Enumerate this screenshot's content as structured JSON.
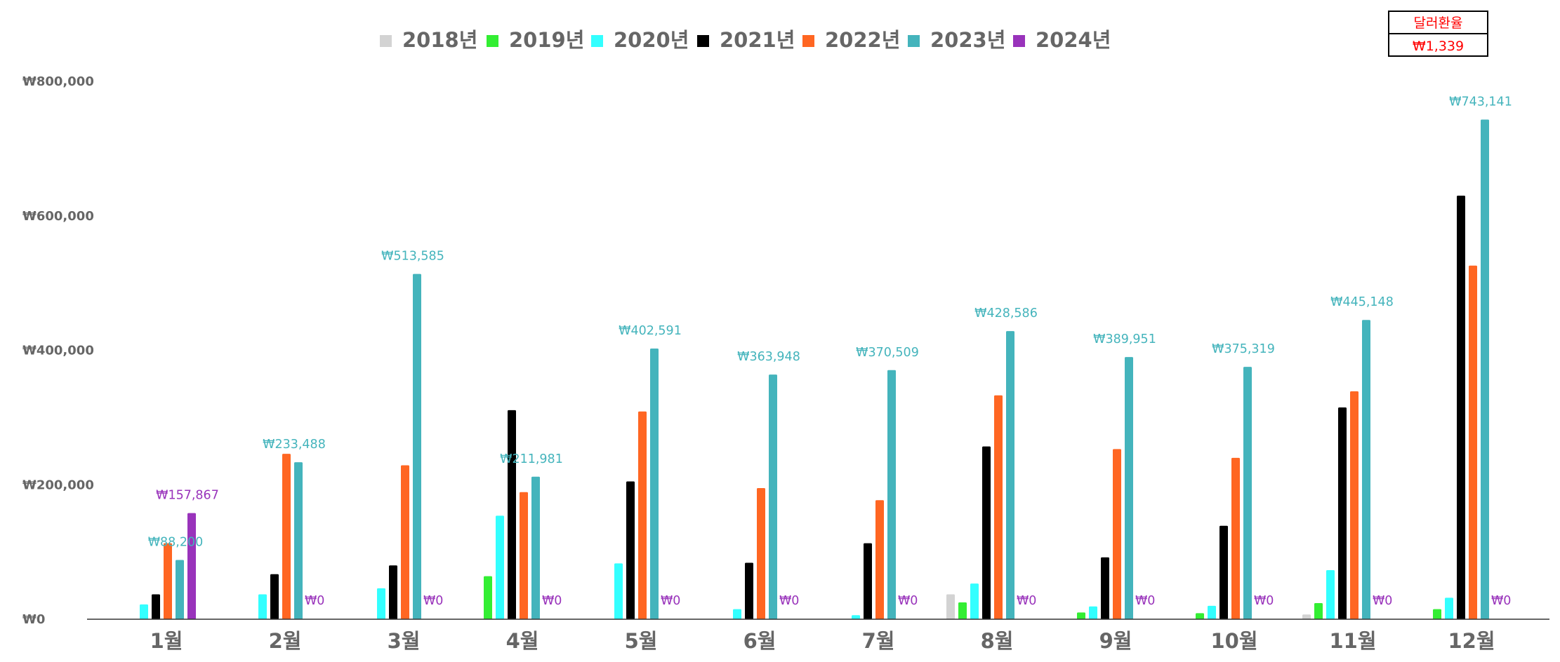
{
  "chart_data": {
    "type": "bar",
    "categories": [
      "1월",
      "2월",
      "3월",
      "4월",
      "5월",
      "6월",
      "7월",
      "8월",
      "9월",
      "10월",
      "11월",
      "12월"
    ],
    "series": [
      {
        "name": "2018년",
        "color": "#d3d3d3",
        "values": [
          0,
          0,
          0,
          0,
          0,
          0,
          0,
          37000,
          0,
          0,
          7000,
          0
        ]
      },
      {
        "name": "2019년",
        "color": "#33ee33",
        "values": [
          0,
          0,
          0,
          64000,
          0,
          0,
          0,
          25000,
          10000,
          9000,
          24000,
          15000
        ]
      },
      {
        "name": "2020년",
        "color": "#33ffff",
        "values": [
          22000,
          37000,
          46000,
          154000,
          83000,
          15000,
          6000,
          53000,
          19000,
          20000,
          73000,
          32000
        ]
      },
      {
        "name": "2021년",
        "color": "#000000",
        "values": [
          37000,
          67000,
          80000,
          311000,
          205000,
          84000,
          113000,
          257000,
          92000,
          139000,
          315000,
          630000
        ]
      },
      {
        "name": "2022년",
        "color": "#ff6622",
        "values": [
          113000,
          246000,
          229000,
          189000,
          309000,
          195000,
          177000,
          333000,
          253000,
          240000,
          339000,
          526000
        ]
      },
      {
        "name": "2023년",
        "color": "#44b4bc",
        "values": [
          88200,
          233488,
          513585,
          211981,
          402591,
          363948,
          370509,
          428586,
          389951,
          375319,
          445148,
          743141
        ],
        "data_labels": [
          "₩88,200",
          "₩233,488",
          "₩513,585",
          "₩211,981",
          "₩402,591",
          "₩363,948",
          "₩370,509",
          "₩428,586",
          "₩389,951",
          "₩375,319",
          "₩445,148",
          "₩743,141"
        ]
      },
      {
        "name": "2024년",
        "color": "#9933bb",
        "values": [
          157867,
          0,
          0,
          0,
          0,
          0,
          0,
          0,
          0,
          0,
          0,
          0
        ],
        "data_labels": [
          "₩157,867",
          "₩0",
          "₩0",
          "₩0",
          "₩0",
          "₩0",
          "₩0",
          "₩0",
          "₩0",
          "₩0",
          "₩0",
          "₩0"
        ]
      }
    ],
    "ylim": [
      0,
      800000
    ],
    "yticks": [
      0,
      200000,
      400000,
      600000,
      800000
    ],
    "ytick_labels": [
      "₩0",
      "₩200,000",
      "₩400,000",
      "₩600,000",
      "₩800,000"
    ],
    "legend_position": "top",
    "grid": false
  },
  "exchange_box": {
    "title": "달러환율",
    "value": "₩1,339"
  }
}
